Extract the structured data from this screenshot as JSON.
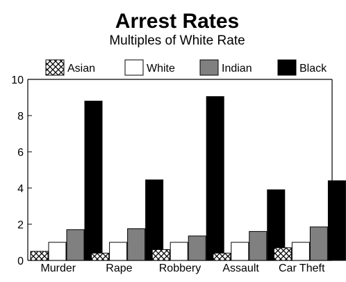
{
  "chart_data": {
    "type": "bar",
    "title": "Arrest Rates",
    "subtitle": "Multiples of White Rate",
    "xlabel": "",
    "ylabel": "",
    "ylim": [
      0,
      10
    ],
    "yticks": [
      "0",
      "2",
      "4",
      "6",
      "8",
      "10"
    ],
    "grid": false,
    "legend_position": "top",
    "categories": [
      "Murder",
      "Rape",
      "Robbery",
      "Assault",
      "Car Theft"
    ],
    "series": [
      {
        "name": "Asian",
        "values": [
          0.5,
          0.4,
          0.6,
          0.4,
          0.7
        ],
        "color": "#ffffff",
        "pattern": "crosshatch"
      },
      {
        "name": "White",
        "values": [
          1,
          1,
          1,
          1,
          1
        ],
        "color": "#ffffff",
        "pattern": "none"
      },
      {
        "name": "Indian",
        "values": [
          1.7,
          1.75,
          1.35,
          1.6,
          1.85
        ],
        "color": "#808080",
        "pattern": "none"
      },
      {
        "name": "Black",
        "values": [
          8.8,
          4.45,
          9.05,
          3.9,
          4.4
        ],
        "color": "#000000",
        "pattern": "none"
      }
    ]
  }
}
